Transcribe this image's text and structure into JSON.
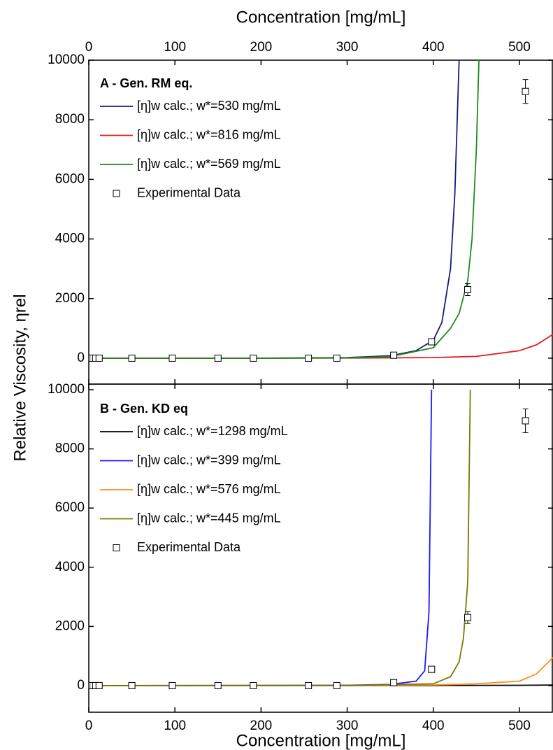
{
  "chart_data": [
    {
      "type": "line",
      "panel_label": "A - Gen. RM eq.",
      "xlabel": "Concentration [mg/mL]",
      "xaxis_position": "top",
      "ylabel": "Relative Viscosity, ηrel",
      "xlim": [
        0,
        539
      ],
      "xticks": [
        0,
        100,
        200,
        300,
        400,
        500
      ],
      "ylim": [
        -870,
        10000
      ],
      "yticks": [
        0,
        2000,
        4000,
        6000,
        8000,
        10000
      ],
      "series": [
        {
          "name": "[η]w calc.; w*=530 mg/mL",
          "color": "#1a1a7a",
          "x": [
            0,
            100,
            200,
            300,
            350,
            380,
            400,
            410,
            420,
            425,
            430
          ],
          "values": [
            0,
            0,
            0,
            20,
            80,
            250,
            600,
            1200,
            3000,
            5500,
            10000
          ]
        },
        {
          "name": "[η]w calc.; w*=816 mg/mL",
          "color": "#e31a1c",
          "x": [
            0,
            200,
            300,
            400,
            450,
            500,
            520,
            539
          ],
          "values": [
            0,
            0,
            5,
            20,
            60,
            250,
            450,
            800
          ]
        },
        {
          "name": "[η]w calc.; w*=569 mg/mL",
          "color": "#1f8a1f",
          "x": [
            0,
            100,
            200,
            300,
            350,
            400,
            420,
            430,
            440,
            445,
            450,
            453
          ],
          "values": [
            0,
            0,
            0,
            10,
            50,
            350,
            1000,
            1500,
            2600,
            4000,
            7000,
            10000
          ]
        },
        {
          "name": "Experimental Data",
          "type": "scatter",
          "x": [
            2,
            5,
            8,
            12,
            50,
            97,
            150,
            191,
            255,
            288,
            354,
            398,
            440,
            507
          ],
          "values": [
            0,
            0,
            0,
            0,
            0,
            0,
            0,
            0,
            0,
            0,
            100,
            550,
            2300,
            8950
          ],
          "errors": [
            null,
            null,
            null,
            null,
            null,
            null,
            null,
            null,
            null,
            null,
            null,
            null,
            200,
            400
          ]
        }
      ]
    },
    {
      "type": "line",
      "panel_label": "B - Gen. KD eq",
      "xlabel": "Concentration [mg/mL]",
      "xaxis_position": "bottom",
      "xlim": [
        0,
        539
      ],
      "xticks": [
        0,
        100,
        200,
        300,
        400,
        500
      ],
      "ylim": [
        -900,
        10190
      ],
      "yticks": [
        0,
        2000,
        4000,
        6000,
        8000,
        10000
      ],
      "series": [
        {
          "name": "[η]w calc.; w*=1298 mg/mL",
          "color": "#000000",
          "x": [
            0,
            300,
            400,
            500,
            539
          ],
          "values": [
            0,
            1,
            3,
            10,
            20
          ]
        },
        {
          "name": "[η]w calc.; w*=399 mg/mL",
          "color": "#1a1aff",
          "x": [
            0,
            300,
            350,
            380,
            390,
            395,
            398
          ],
          "values": [
            0,
            10,
            40,
            150,
            500,
            2500,
            10000
          ]
        },
        {
          "name": "[η]w calc.; w*=576 mg/mL",
          "color": "#ff8c1a",
          "x": [
            0,
            300,
            400,
            450,
            500,
            520,
            539
          ],
          "values": [
            0,
            2,
            20,
            60,
            150,
            400,
            950
          ]
        },
        {
          "name": "[η]w calc.; w*=445 mg/mL",
          "color": "#7a7a00",
          "x": [
            0,
            300,
            400,
            420,
            430,
            435,
            440,
            443
          ],
          "values": [
            0,
            5,
            60,
            300,
            800,
            1600,
            3500,
            10000
          ]
        },
        {
          "name": "Experimental Data",
          "type": "scatter",
          "x": [
            2,
            5,
            8,
            12,
            50,
            97,
            150,
            191,
            255,
            288,
            354,
            398,
            440,
            507
          ],
          "values": [
            0,
            0,
            0,
            0,
            0,
            0,
            0,
            0,
            0,
            0,
            100,
            550,
            2300,
            8950
          ],
          "errors": [
            null,
            null,
            null,
            null,
            null,
            null,
            null,
            null,
            null,
            null,
            null,
            null,
            200,
            400
          ]
        }
      ]
    }
  ]
}
